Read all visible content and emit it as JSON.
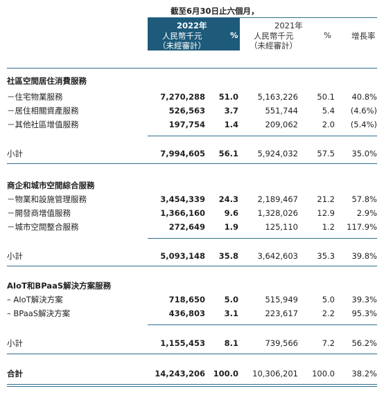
{
  "header": {
    "period": "截至6月30日止六個月，",
    "y2022": {
      "year": "2022年",
      "unit": "人民幣千元",
      "audit": "（未經審計）",
      "pct": "%"
    },
    "y2021": {
      "year": "2021年",
      "unit": "人民幣千元",
      "audit": "（未經審計）",
      "pct": "%"
    },
    "growth": "增長率"
  },
  "sections": [
    {
      "title": "社區空間居住消費服務",
      "rows": [
        {
          "label": "－住宅物業服務",
          "v2022": "7,270,288",
          "p2022": "51.0",
          "v2021": "5,163,226",
          "p2021": "50.1",
          "growth": "40.8%"
        },
        {
          "label": "－居住相關資產服務",
          "v2022": "526,563",
          "p2022": "3.7",
          "v2021": "551,744",
          "p2021": "5.4",
          "growth": "(4.6%)"
        },
        {
          "label": "－其他社區增值服務",
          "v2022": "197,754",
          "p2022": "1.4",
          "v2021": "209,062",
          "p2021": "2.0",
          "growth": "(5.4%)"
        }
      ],
      "subtotal": {
        "label": "小計",
        "v2022": "7,994,605",
        "p2022": "56.1",
        "v2021": "5,924,032",
        "p2021": "57.5",
        "growth": "35.0%"
      }
    },
    {
      "title": "商企和城市空間綜合服務",
      "rows": [
        {
          "label": "－物業和設施管理服務",
          "v2022": "3,454,339",
          "p2022": "24.3",
          "v2021": "2,189,467",
          "p2021": "21.2",
          "growth": "57.8%"
        },
        {
          "label": "－開發商增值服務",
          "v2022": "1,366,160",
          "p2022": "9.6",
          "v2021": "1,328,026",
          "p2021": "12.9",
          "growth": "2.9%"
        },
        {
          "label": "－城市空間整合服務",
          "v2022": "272,649",
          "p2022": "1.9",
          "v2021": "125,110",
          "p2021": "1.2",
          "growth": "117.9%"
        }
      ],
      "subtotal": {
        "label": "小計",
        "v2022": "5,093,148",
        "p2022": "35.8",
        "v2021": "3,642,603",
        "p2021": "35.3",
        "growth": "39.8%"
      }
    },
    {
      "title": "AIoT和BPaaS解決方案服務",
      "rows": [
        {
          "label": "– AIoT解決方案",
          "v2022": "718,650",
          "p2022": "5.0",
          "v2021": "515,949",
          "p2021": "5.0",
          "growth": "39.3%"
        },
        {
          "label": "– BPaaS解決方案",
          "v2022": "436,803",
          "p2022": "3.1",
          "v2021": "223,617",
          "p2021": "2.2",
          "growth": "95.3%"
        }
      ],
      "subtotal": {
        "label": "小計",
        "v2022": "1,155,453",
        "p2022": "8.1",
        "v2021": "739,566",
        "p2021": "7.2",
        "growth": "56.2%"
      }
    }
  ],
  "total": {
    "label": "合計",
    "v2022": "14,243,206",
    "p2022": "100.0",
    "v2021": "10,306,201",
    "p2021": "100.0",
    "growth": "38.2%"
  },
  "colors": {
    "highlight": "#1e5a7a",
    "rule": "#2b6b8e",
    "text": "#1f1f1f"
  }
}
